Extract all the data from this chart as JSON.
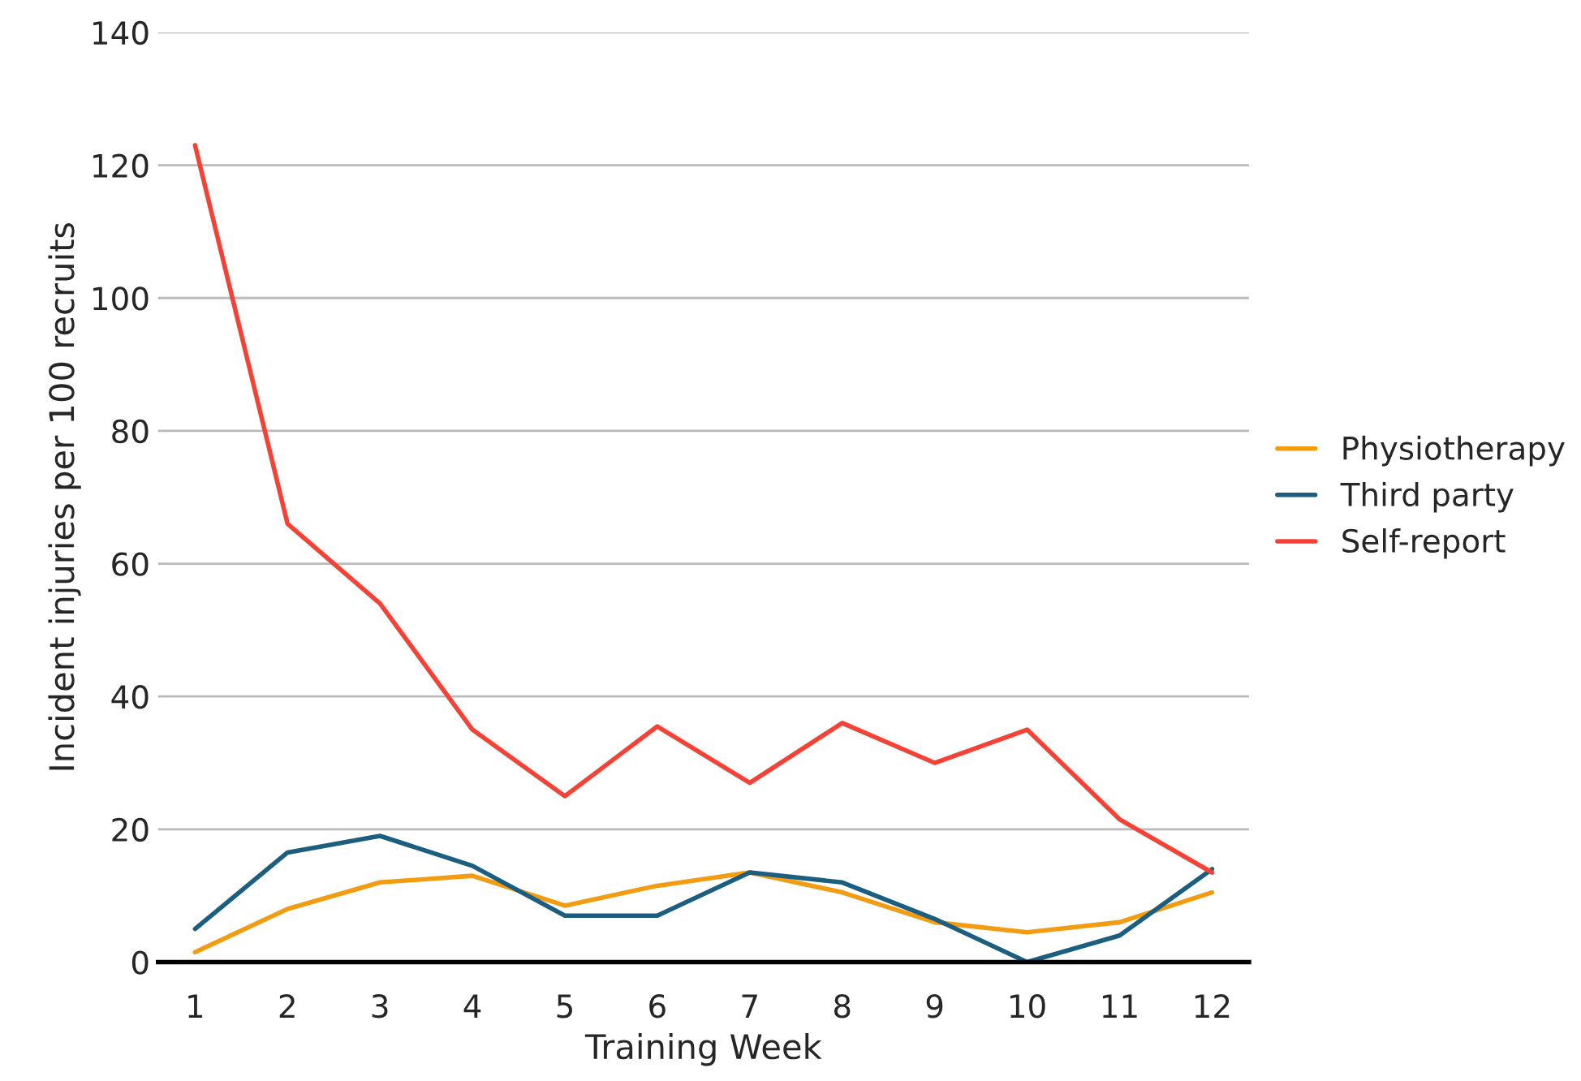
{
  "chart_data": {
    "type": "line",
    "xlabel": "Training Week",
    "ylabel": "Incident injuries per 100 recruits",
    "categories": [
      "1",
      "2",
      "3",
      "4",
      "5",
      "6",
      "7",
      "8",
      "9",
      "10",
      "11",
      "12"
    ],
    "series": [
      {
        "name": "Physiotherapy",
        "color": "#f39c12",
        "values": [
          1.5,
          8,
          12,
          13,
          8.5,
          11.5,
          13.5,
          10.5,
          6,
          4.5,
          6,
          10.5
        ]
      },
      {
        "name": "Third party",
        "color": "#1b5e80",
        "values": [
          5,
          16.5,
          19,
          14.5,
          7,
          7,
          13.5,
          12,
          6.5,
          0,
          4,
          14
        ]
      },
      {
        "name": "Self-report",
        "color": "#f44336",
        "values": [
          123,
          66,
          54,
          35,
          25,
          35.5,
          27,
          36,
          30,
          35,
          21.5,
          13.5
        ]
      }
    ],
    "ylim": [
      0,
      140
    ],
    "yticks": [
      0,
      20,
      40,
      60,
      80,
      100,
      120,
      140
    ],
    "grid": "y",
    "legend": "right",
    "marker": "none",
    "line_style": "solid"
  }
}
